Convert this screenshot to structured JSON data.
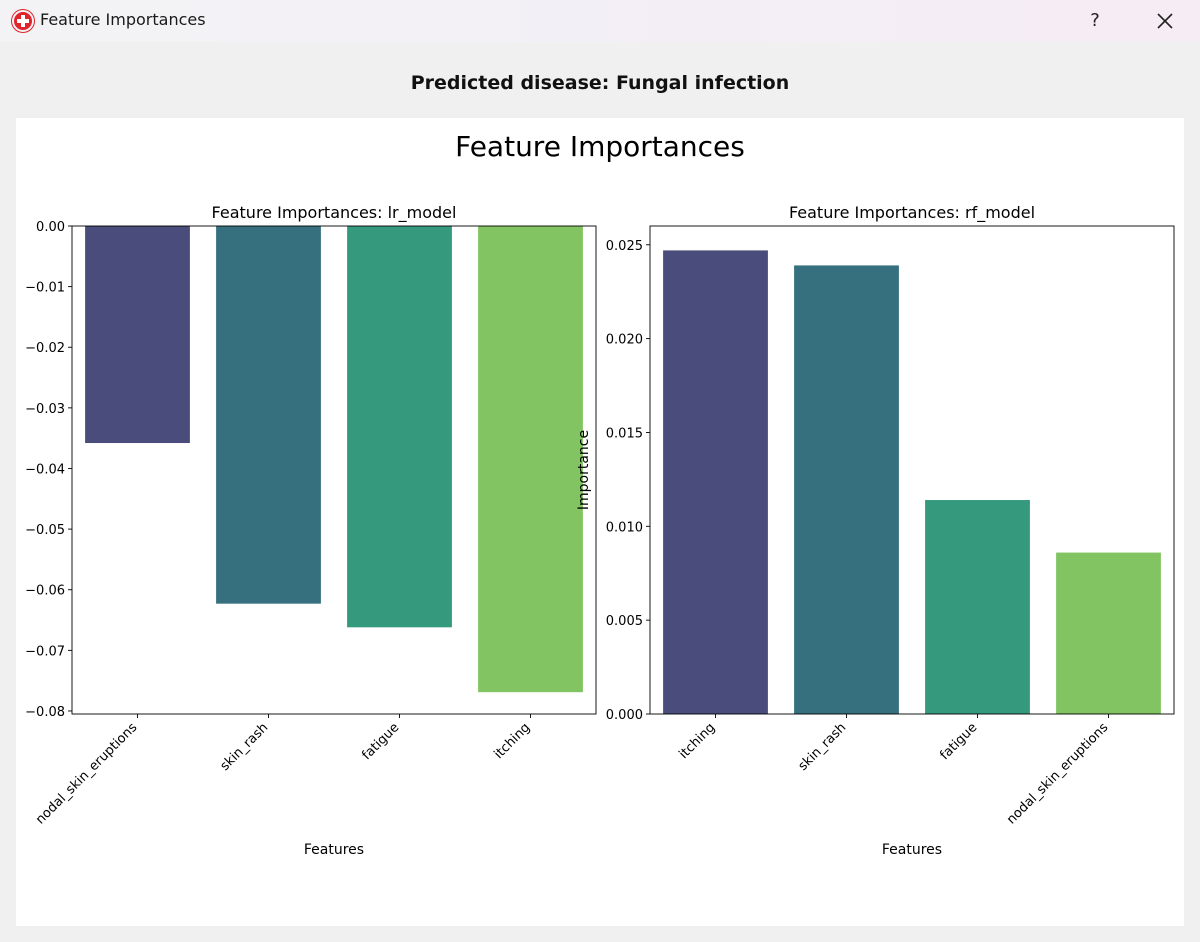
{
  "window": {
    "title": "Feature Importances",
    "help_label": "?",
    "icon": "app-cross-icon"
  },
  "heading": "Predicted disease: Fungal infection",
  "figure": {
    "suptitle": "Feature Importances"
  },
  "chart_data": [
    {
      "type": "bar",
      "title": "Feature Importances: lr_model",
      "xlabel": "Features",
      "ylabel": "",
      "categories": [
        "nodal_skin_eruptions",
        "skin_rash",
        "fatigue",
        "itching"
      ],
      "values": [
        -0.0358,
        -0.0623,
        -0.0662,
        -0.0769
      ],
      "ylim": [
        -0.0805,
        0.0
      ],
      "yticks": [
        0.0,
        -0.01,
        -0.02,
        -0.03,
        -0.04,
        -0.05,
        -0.06,
        -0.07,
        -0.08
      ],
      "ytick_labels": [
        "0.00",
        "−0.01",
        "−0.02",
        "−0.03",
        "−0.04",
        "−0.05",
        "−0.06",
        "−0.07",
        "−0.08"
      ],
      "colors": [
        "#4a4c7c",
        "#36707f",
        "#35997d",
        "#82c462"
      ],
      "grid": false
    },
    {
      "type": "bar",
      "title": "Feature Importances: rf_model",
      "xlabel": "Features",
      "ylabel": "Importance",
      "categories": [
        "itching",
        "skin_rash",
        "fatigue",
        "nodal_skin_eruptions"
      ],
      "values": [
        0.0247,
        0.0239,
        0.0114,
        0.0086
      ],
      "ylim": [
        0.0,
        0.026
      ],
      "yticks": [
        0.0,
        0.005,
        0.01,
        0.015,
        0.02,
        0.025
      ],
      "ytick_labels": [
        "0.000",
        "0.005",
        "0.010",
        "0.015",
        "0.020",
        "0.025"
      ],
      "colors": [
        "#4a4c7c",
        "#36707f",
        "#35997d",
        "#82c462"
      ],
      "grid": false
    }
  ]
}
